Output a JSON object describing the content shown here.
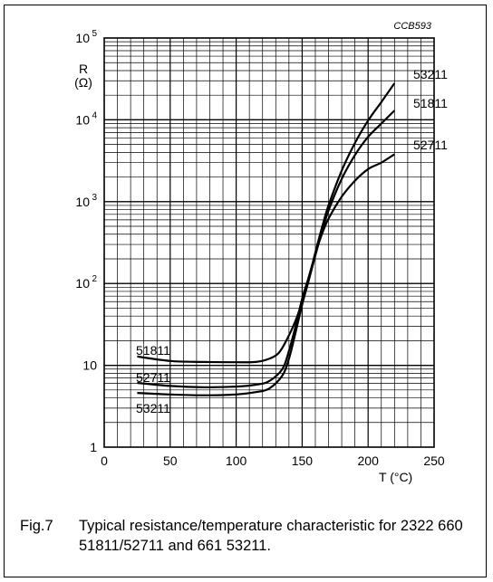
{
  "figure": {
    "code": "CCB593",
    "number": "Fig.7",
    "caption": "Typical resistance/temperature characteristic for 2322 660 51811/52711 and 661 53211."
  },
  "chart_data": {
    "type": "line",
    "title": "",
    "xlabel": "T (°C)",
    "ylabel_top": "R",
    "ylabel_unit": "(Ω)",
    "xlim": [
      0,
      250
    ],
    "ylim": [
      1,
      100000
    ],
    "yscale": "log",
    "grid": true,
    "x_ticks": [
      0,
      50,
      100,
      150,
      200,
      250
    ],
    "x_tick_labels": [
      "0",
      "50",
      "100",
      "150",
      "200",
      "250"
    ],
    "y_ticks": [
      1,
      10,
      100,
      1000,
      10000,
      100000
    ],
    "y_tick_labels": [
      {
        "base": "1",
        "exp": ""
      },
      {
        "base": "10",
        "exp": ""
      },
      {
        "base": "10",
        "exp": "2"
      },
      {
        "base": "10",
        "exp": "3"
      },
      {
        "base": "10",
        "exp": "4"
      },
      {
        "base": "10",
        "exp": "5"
      }
    ],
    "series": [
      {
        "name": "53211",
        "x": [
          25,
          50,
          75,
          100,
          115,
          125,
          135,
          140,
          145,
          150,
          155,
          160,
          165,
          170,
          180,
          190,
          200,
          210,
          220
        ],
        "y": [
          4.6,
          4.4,
          4.3,
          4.4,
          4.7,
          5.2,
          7.5,
          12,
          25,
          55,
          110,
          240,
          480,
          900,
          2400,
          5200,
          9800,
          16500,
          28000
        ]
      },
      {
        "name": "51811",
        "x": [
          25,
          50,
          75,
          100,
          115,
          125,
          132,
          138,
          145,
          150,
          155,
          160,
          165,
          170,
          180,
          190,
          200,
          210,
          220
        ],
        "y": [
          12.8,
          11.3,
          11,
          10.9,
          11,
          12,
          14,
          20,
          35,
          60,
          110,
          220,
          430,
          780,
          1900,
          3700,
          6200,
          9000,
          13000
        ]
      },
      {
        "name": "52711",
        "x": [
          25,
          50,
          75,
          100,
          115,
          125,
          135,
          140,
          145,
          150,
          155,
          160,
          165,
          170,
          180,
          190,
          200,
          210,
          220
        ],
        "y": [
          6.1,
          5.6,
          5.4,
          5.5,
          5.8,
          6.4,
          9,
          15,
          30,
          65,
          120,
          230,
          400,
          620,
          1150,
          1800,
          2500,
          3000,
          3800
        ]
      }
    ]
  }
}
